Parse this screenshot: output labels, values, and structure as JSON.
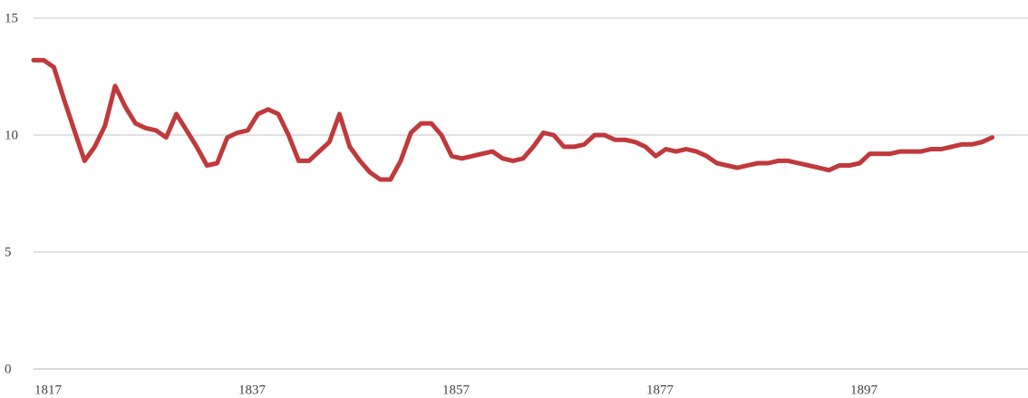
{
  "chart_data": {
    "type": "line",
    "title": "",
    "xlabel": "",
    "ylabel": "",
    "xlim": [
      1817,
      1908
    ],
    "ylim": [
      0,
      15
    ],
    "x_ticks": [
      1817,
      1837,
      1857,
      1877,
      1897
    ],
    "y_ticks": [
      0,
      5,
      10,
      15
    ],
    "grid": true,
    "line_color": "#c0393b",
    "grid_color": "#d9d9d9",
    "series": [
      {
        "points": [
          [
            1817,
            13.2
          ],
          [
            1818,
            13.2
          ],
          [
            1819,
            12.9
          ],
          [
            1820,
            11.5
          ],
          [
            1821,
            10.2
          ],
          [
            1822,
            8.9
          ],
          [
            1823,
            9.5
          ],
          [
            1824,
            10.4
          ],
          [
            1825,
            12.1
          ],
          [
            1826,
            11.2
          ],
          [
            1827,
            10.5
          ],
          [
            1828,
            10.3
          ],
          [
            1829,
            10.2
          ],
          [
            1830,
            9.9
          ],
          [
            1831,
            10.9
          ],
          [
            1832,
            10.2
          ],
          [
            1833,
            9.5
          ],
          [
            1834,
            8.7
          ],
          [
            1835,
            8.8
          ],
          [
            1836,
            9.9
          ],
          [
            1837,
            10.1
          ],
          [
            1838,
            10.2
          ],
          [
            1839,
            10.9
          ],
          [
            1840,
            11.1
          ],
          [
            1841,
            10.9
          ],
          [
            1842,
            10.0
          ],
          [
            1843,
            8.9
          ],
          [
            1844,
            8.9
          ],
          [
            1845,
            9.3
          ],
          [
            1846,
            9.7
          ],
          [
            1847,
            10.9
          ],
          [
            1848,
            9.5
          ],
          [
            1849,
            8.9
          ],
          [
            1850,
            8.4
          ],
          [
            1851,
            8.1
          ],
          [
            1852,
            8.1
          ],
          [
            1853,
            8.9
          ],
          [
            1854,
            10.1
          ],
          [
            1855,
            10.5
          ],
          [
            1856,
            10.5
          ],
          [
            1857,
            10.0
          ],
          [
            1858,
            9.1
          ],
          [
            1859,
            9.0
          ],
          [
            1860,
            9.1
          ],
          [
            1861,
            9.2
          ],
          [
            1862,
            9.3
          ],
          [
            1863,
            9.0
          ],
          [
            1864,
            8.9
          ],
          [
            1865,
            9.0
          ],
          [
            1866,
            9.5
          ],
          [
            1867,
            10.1
          ],
          [
            1868,
            10.0
          ],
          [
            1869,
            9.5
          ],
          [
            1870,
            9.5
          ],
          [
            1871,
            9.6
          ],
          [
            1872,
            10.0
          ],
          [
            1873,
            10.0
          ],
          [
            1874,
            9.8
          ],
          [
            1875,
            9.8
          ],
          [
            1876,
            9.7
          ],
          [
            1877,
            9.5
          ],
          [
            1878,
            9.1
          ],
          [
            1879,
            9.4
          ],
          [
            1880,
            9.3
          ],
          [
            1881,
            9.4
          ],
          [
            1882,
            9.3
          ],
          [
            1883,
            9.1
          ],
          [
            1884,
            8.8
          ],
          [
            1885,
            8.7
          ],
          [
            1886,
            8.6
          ],
          [
            1887,
            8.7
          ],
          [
            1888,
            8.8
          ],
          [
            1889,
            8.8
          ],
          [
            1890,
            8.9
          ],
          [
            1891,
            8.9
          ],
          [
            1892,
            8.8
          ],
          [
            1893,
            8.7
          ],
          [
            1894,
            8.6
          ],
          [
            1895,
            8.5
          ],
          [
            1896,
            8.7
          ],
          [
            1897,
            8.7
          ],
          [
            1898,
            8.8
          ],
          [
            1899,
            9.2
          ],
          [
            1900,
            9.2
          ],
          [
            1901,
            9.2
          ],
          [
            1902,
            9.3
          ],
          [
            1903,
            9.3
          ],
          [
            1904,
            9.3
          ],
          [
            1905,
            9.4
          ],
          [
            1906,
            9.4
          ],
          [
            1907,
            9.5
          ],
          [
            1908,
            9.6
          ],
          [
            1909,
            9.6
          ],
          [
            1910,
            9.7
          ],
          [
            1911,
            9.9
          ]
        ]
      }
    ]
  }
}
